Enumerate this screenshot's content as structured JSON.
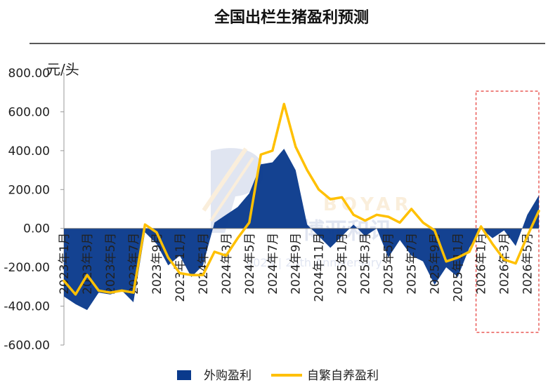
{
  "chart_data": {
    "type": "area+line",
    "title": "全国出栏生猪盈利预测",
    "ylabel": "元/头",
    "ylim": [
      -600,
      800
    ],
    "yticks": [
      800,
      600,
      400,
      200,
      0,
      -200,
      -400,
      -600
    ],
    "ytick_labels": [
      "800.00",
      "600.00",
      "400.00",
      "200.00",
      "0.00",
      "-200.00",
      "-400.00",
      "-600.00"
    ],
    "x_labels": [
      "2023年1月",
      "2023年3月",
      "2023年5月",
      "2023年7月",
      "2023年9月",
      "2023年11月",
      "2024年1月",
      "2024年3月",
      "2024年5月",
      "2024年7月",
      "2024年9月",
      "2024年11月",
      "2025年1月",
      "2025年3月",
      "2025年5月",
      "2025年7月",
      "2025年9月",
      "2025年11月",
      "2026年1月",
      "2026年3月",
      "2026年5月"
    ],
    "months": [
      "2023-01",
      "2023-02",
      "2023-03",
      "2023-04",
      "2023-05",
      "2023-06",
      "2023-07",
      "2023-08",
      "2023-09",
      "2023-10",
      "2023-11",
      "2023-12",
      "2024-01",
      "2024-02",
      "2024-03",
      "2024-04",
      "2024-05",
      "2024-06",
      "2024-07",
      "2024-08",
      "2024-09",
      "2024-10",
      "2024-11",
      "2024-12",
      "2025-01",
      "2025-02",
      "2025-03",
      "2025-04",
      "2025-05",
      "2025-06",
      "2025-07",
      "2025-08",
      "2025-09",
      "2025-10",
      "2025-11",
      "2025-12",
      "2026-01",
      "2026-02",
      "2026-03",
      "2026-04",
      "2026-05",
      "2026-06"
    ],
    "series": [
      {
        "name": "外购盈利",
        "kind": "area",
        "color": "#0a3a8c",
        "values": [
          -350,
          -390,
          -420,
          -330,
          -340,
          -320,
          -380,
          -20,
          -80,
          -190,
          -140,
          -250,
          -190,
          30,
          70,
          110,
          180,
          330,
          340,
          410,
          300,
          20,
          -40,
          -100,
          -40,
          20,
          -40,
          0,
          -150,
          -60,
          -140,
          -170,
          -290,
          -200,
          -250,
          -100,
          0,
          -50,
          -10,
          -90,
          70,
          170
        ]
      },
      {
        "name": "自繁自养盈利",
        "kind": "line",
        "color": "#ffc000",
        "values": [
          -270,
          -340,
          -240,
          -320,
          -330,
          -320,
          -330,
          20,
          -20,
          -150,
          -230,
          -240,
          -240,
          -120,
          -140,
          -50,
          30,
          380,
          400,
          640,
          420,
          300,
          200,
          150,
          160,
          70,
          40,
          70,
          60,
          30,
          100,
          30,
          -10,
          -170,
          -150,
          -120,
          10,
          -80,
          -160,
          -180,
          -40,
          90
        ]
      }
    ],
    "legend": {
      "position": "bottom",
      "labels": [
        "外购盈利",
        "自繁自养盈利"
      ]
    },
    "highlight": {
      "label": "forecast-box",
      "from": "2026-01",
      "to": "2026-06",
      "style": "dashed red"
    },
    "watermark": "BOYAR 博亚和讯 2025 | 25th Anniversary"
  }
}
